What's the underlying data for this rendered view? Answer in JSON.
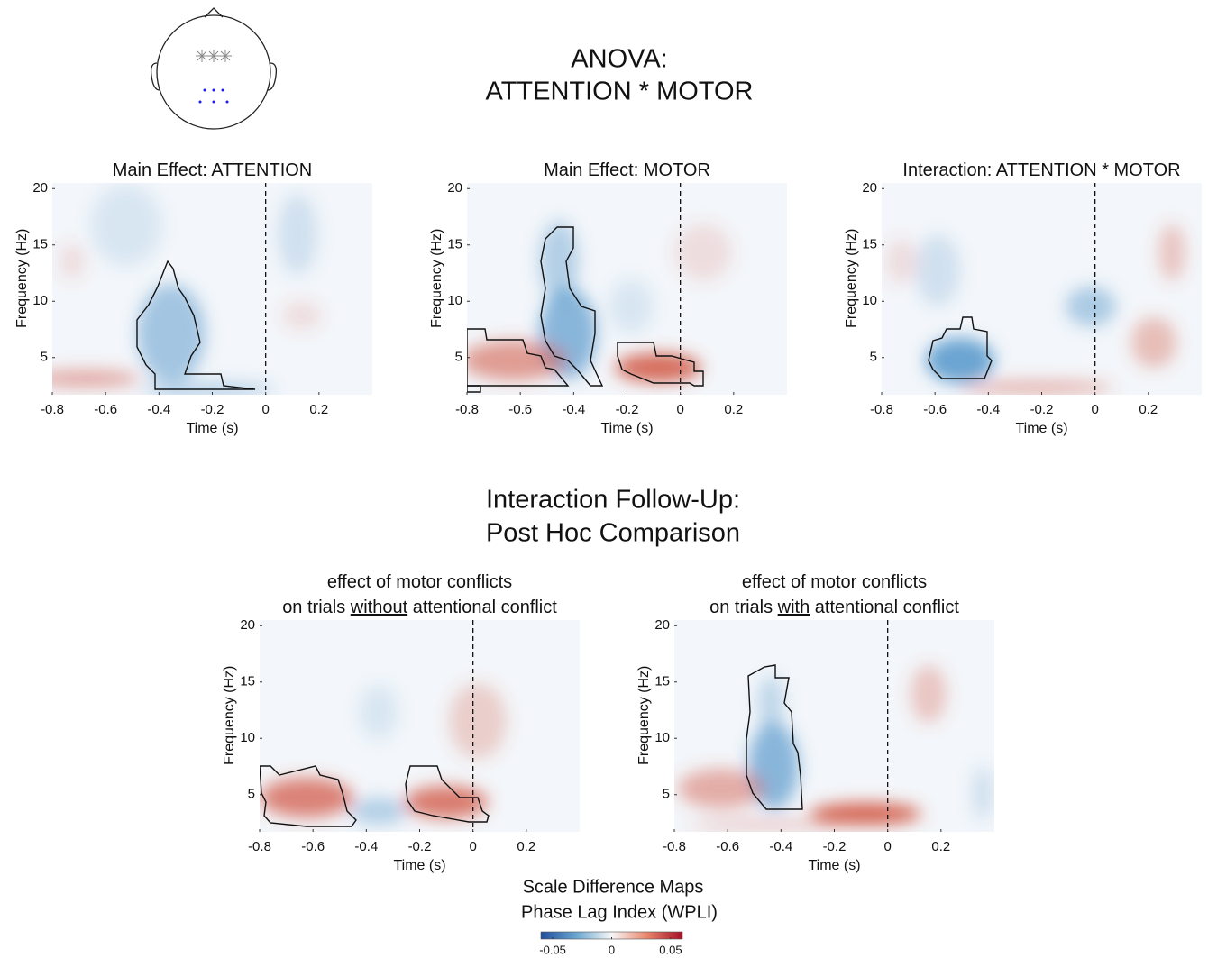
{
  "header": {
    "title": [
      "ANOVA:",
      "ATTENTION * MOTOR"
    ]
  },
  "section_title": [
    "Interaction Follow-Up:",
    "Post Hoc Comparison"
  ],
  "chart_data": [
    {
      "type": "heatmap",
      "title_lines": [
        [
          "Main Effect: ATTENTION"
        ]
      ],
      "xlabel": "Time (s)",
      "ylabel": "Frequency (Hz)",
      "xlim": [
        -0.8,
        0.4
      ],
      "ylim": [
        1.7,
        20.5
      ],
      "xticks": [
        -0.8,
        -0.6,
        -0.4,
        -0.2,
        0,
        0.2
      ],
      "yticks": [
        5,
        10,
        15,
        20
      ]
    },
    {
      "type": "heatmap",
      "title_lines": [
        [
          "Main Effect: MOTOR"
        ]
      ],
      "xlabel": "Time (s)",
      "ylabel": "Frequency (Hz)",
      "xlim": [
        -0.8,
        0.4
      ],
      "ylim": [
        1.7,
        20.5
      ],
      "xticks": [
        -0.8,
        -0.6,
        -0.4,
        -0.2,
        0,
        0.2
      ],
      "yticks": [
        5,
        10,
        15,
        20
      ]
    },
    {
      "type": "heatmap",
      "title_lines": [
        [
          "Interaction: ATTENTION * MOTOR"
        ]
      ],
      "xlabel": "Time (s)",
      "ylabel": "Frequency (Hz)",
      "xlim": [
        -0.8,
        0.4
      ],
      "ylim": [
        1.7,
        20.5
      ],
      "xticks": [
        -0.8,
        -0.6,
        -0.4,
        -0.2,
        0,
        0.2
      ],
      "yticks": [
        5,
        10,
        15,
        20
      ]
    },
    {
      "type": "heatmap",
      "title_lines": [
        [
          "effect of motor conflicts"
        ],
        [
          "on trials ",
          "without",
          " attentional conflict"
        ]
      ],
      "underline": [
        1,
        1
      ],
      "xlabel": "Time (s)",
      "ylabel": "Frequency (Hz)",
      "xlim": [
        -0.8,
        0.4
      ],
      "ylim": [
        1.7,
        20.5
      ],
      "xticks": [
        -0.8,
        -0.6,
        -0.4,
        -0.2,
        0,
        0.2
      ],
      "yticks": [
        5,
        10,
        15,
        20
      ]
    },
    {
      "type": "heatmap",
      "title_lines": [
        [
          "effect of motor conflicts"
        ],
        [
          "on trials ",
          "with",
          " attentional conflict"
        ]
      ],
      "underline": [
        1,
        1
      ],
      "xlabel": "Time (s)",
      "ylabel": "Frequency (Hz)",
      "xlim": [
        -0.8,
        0.4
      ],
      "ylim": [
        1.7,
        20.5
      ],
      "xticks": [
        -0.8,
        -0.6,
        -0.4,
        -0.2,
        0,
        0.2
      ],
      "yticks": [
        5,
        10,
        15,
        20
      ]
    }
  ],
  "colorbar": {
    "label": [
      "Scale Difference Maps",
      "Phase Lag Index (WPLI)"
    ],
    "lim": [
      -0.06,
      0.06
    ],
    "ticks": [
      -0.05,
      0,
      0.05
    ]
  }
}
